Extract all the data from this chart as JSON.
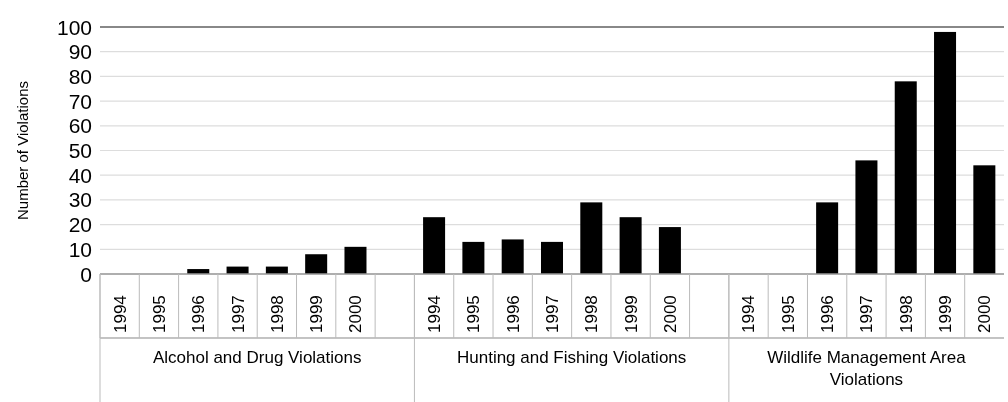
{
  "chart_data": {
    "type": "bar",
    "ylabel": "Number of Violations",
    "categories": [
      "1994",
      "1995",
      "1996",
      "1997",
      "1998",
      "1999",
      "2000",
      null,
      "1994",
      "1995",
      "1996",
      "1997",
      "1998",
      "1999",
      "2000",
      null,
      "1994",
      "1995",
      "1996",
      "1997",
      "1998",
      "1999",
      "2000"
    ],
    "values": [
      0,
      0,
      2,
      3,
      3,
      8,
      11,
      null,
      23,
      13,
      14,
      13,
      29,
      23,
      19,
      null,
      0,
      0,
      29,
      46,
      78,
      98,
      44
    ],
    "color": "#000000",
    "ylim": [
      0,
      100
    ],
    "yticks": [
      0,
      10,
      20,
      30,
      40,
      50,
      60,
      70,
      80,
      90,
      100
    ],
    "grid": "y",
    "annotations": [
      "Alcohol and Drug Violations",
      "Hunting and Fishing Violations",
      "Wildlife Management Area Violations"
    ]
  }
}
